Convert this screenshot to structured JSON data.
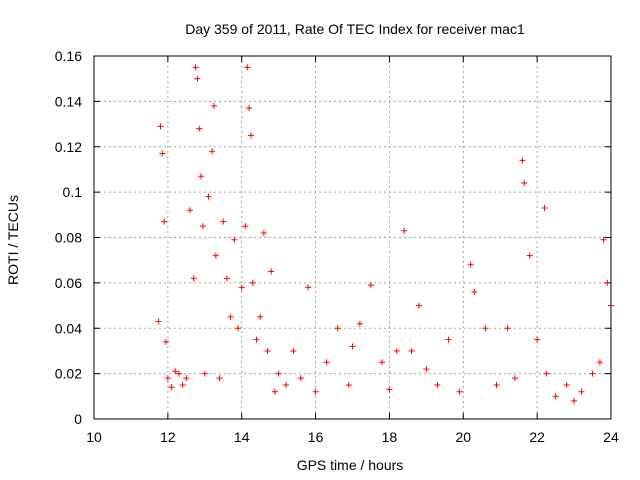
{
  "chart_data": {
    "type": "scatter",
    "title": "Day 359 of 2011, Rate Of TEC Index for receiver mac1",
    "xlabel": "GPS time / hours",
    "ylabel": "ROTI / TECUs",
    "xlim": [
      10,
      24
    ],
    "ylim": [
      0,
      0.16
    ],
    "xticks": [
      "10",
      "12",
      "14",
      "16",
      "18",
      "20",
      "22",
      "24"
    ],
    "yticks": [
      "0",
      "0.02",
      "0.04",
      "0.06",
      "0.08",
      "0.1",
      "0.12",
      "0.14",
      "0.16"
    ],
    "grid": true,
    "legend": "none",
    "marker": "plus",
    "color": "#ff0000",
    "series": [
      {
        "x": [
          11.75,
          11.8,
          11.85,
          11.9,
          11.95,
          12.0,
          12.1,
          12.2,
          12.3,
          12.4,
          12.5,
          12.6,
          12.7,
          12.75,
          12.8,
          12.85,
          12.9,
          12.95,
          13.0,
          13.1,
          13.2,
          13.25,
          13.3,
          13.4,
          13.5,
          13.6,
          13.7,
          13.8,
          13.9,
          14.0,
          14.1,
          14.15,
          14.2,
          14.25,
          14.3,
          14.4,
          14.5,
          14.6,
          14.7,
          14.8,
          14.9,
          15.0,
          15.2,
          15.4,
          15.6,
          15.8,
          16.0,
          16.3,
          16.6,
          16.9,
          17.0,
          17.2,
          17.5,
          17.8,
          18.0,
          18.2,
          18.4,
          18.6,
          18.8,
          19.0,
          19.3,
          19.6,
          19.9,
          20.2,
          20.3,
          20.6,
          20.9,
          21.2,
          21.4,
          21.6,
          21.65,
          21.8,
          22.0,
          22.2,
          22.25,
          22.5,
          22.8,
          23.0,
          23.2,
          23.5,
          23.7,
          23.8,
          23.9,
          24.0
        ],
        "y": [
          0.043,
          0.129,
          0.117,
          0.087,
          0.034,
          0.018,
          0.014,
          0.021,
          0.02,
          0.015,
          0.018,
          0.092,
          0.062,
          0.155,
          0.15,
          0.128,
          0.107,
          0.085,
          0.02,
          0.098,
          0.118,
          0.138,
          0.072,
          0.018,
          0.087,
          0.062,
          0.045,
          0.079,
          0.04,
          0.058,
          0.085,
          0.155,
          0.137,
          0.125,
          0.06,
          0.035,
          0.045,
          0.082,
          0.03,
          0.065,
          0.012,
          0.02,
          0.015,
          0.03,
          0.018,
          0.058,
          0.012,
          0.025,
          0.04,
          0.015,
          0.032,
          0.042,
          0.059,
          0.025,
          0.013,
          0.03,
          0.083,
          0.03,
          0.05,
          0.022,
          0.015,
          0.035,
          0.012,
          0.068,
          0.056,
          0.04,
          0.015,
          0.04,
          0.018,
          0.114,
          0.104,
          0.072,
          0.035,
          0.093,
          0.02,
          0.01,
          0.015,
          0.008,
          0.012,
          0.02,
          0.025,
          0.079,
          0.06,
          0.05
        ]
      }
    ]
  }
}
